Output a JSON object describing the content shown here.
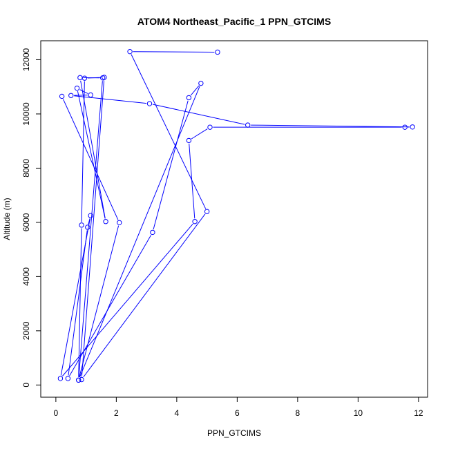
{
  "chart_data": {
    "type": "line",
    "title": "ATOM4 Northeast_Pacific_1 PPN_GTCIMS",
    "xlabel": "PPN_GTCIMS",
    "ylabel": "Altitude (m)",
    "xlim": [
      -0.5,
      12.3
    ],
    "ylim": [
      -450,
      12700
    ],
    "xticks": [
      0,
      2,
      4,
      6,
      8,
      10,
      12
    ],
    "yticks": [
      0,
      2000,
      4000,
      6000,
      8000,
      10000,
      12000
    ],
    "grid": false,
    "series": [
      {
        "color": "#0000ff",
        "points": [
          [
            5.35,
            12280
          ],
          [
            2.45,
            12300
          ],
          [
            5.0,
            6400
          ],
          [
            0.85,
            200
          ],
          [
            1.6,
            11350
          ],
          [
            0.95,
            11320
          ],
          [
            0.85,
            5900
          ],
          [
            0.75,
            180
          ],
          [
            1.55,
            11330
          ],
          [
            0.8,
            11340
          ],
          [
            1.65,
            6030
          ],
          [
            0.7,
            10950
          ],
          [
            1.15,
            10700
          ],
          [
            0.5,
            10680
          ],
          [
            3.1,
            10380
          ],
          [
            6.35,
            9590
          ],
          [
            11.8,
            9520
          ],
          [
            11.55,
            9510
          ],
          [
            5.1,
            9510
          ],
          [
            4.4,
            9020
          ],
          [
            4.6,
            6030
          ],
          [
            0.15,
            240
          ],
          [
            1.15,
            6250
          ],
          [
            1.05,
            5820
          ],
          [
            0.4,
            240
          ],
          [
            3.2,
            5630
          ],
          [
            4.4,
            10600
          ],
          [
            4.8,
            11130
          ],
          [
            0.75,
            180
          ],
          [
            2.1,
            5990
          ],
          [
            0.2,
            10650
          ]
        ]
      }
    ]
  }
}
